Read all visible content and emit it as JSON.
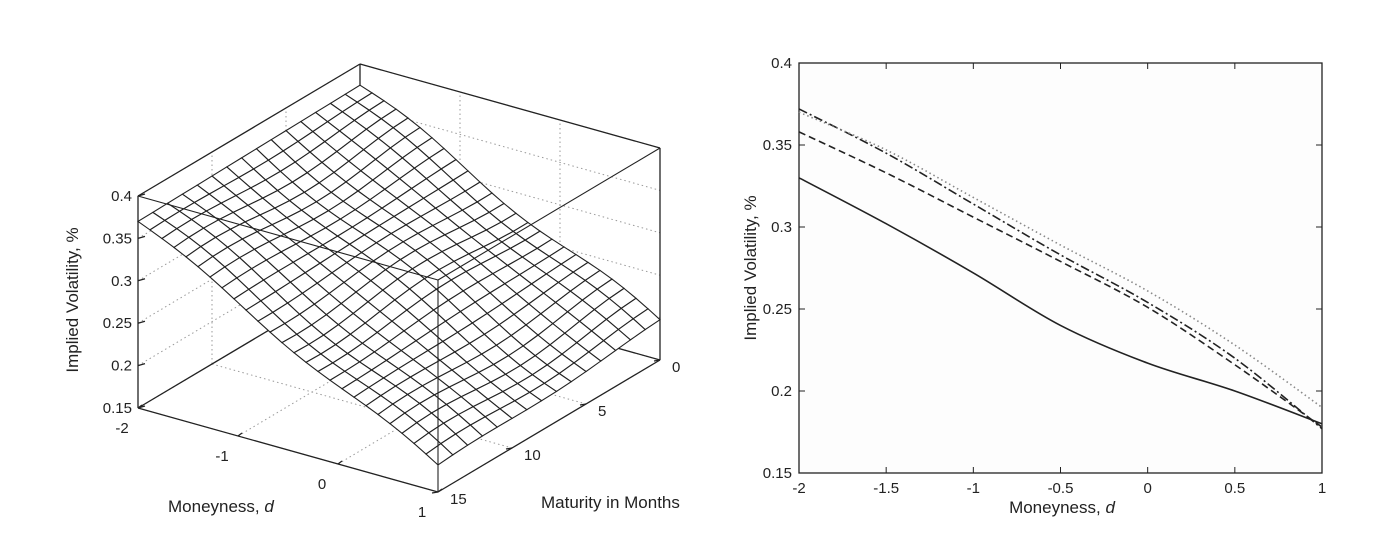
{
  "chart_data": [
    {
      "type": "surface",
      "xlabel": "Moneyness, ",
      "xlabel_var": "d",
      "ylabel": "Maturity in Months",
      "zlabel": "Implied Volatility, %",
      "xlim": [
        -2,
        1
      ],
      "ylim": [
        0,
        15
      ],
      "zlim": [
        0.15,
        0.4
      ],
      "xticks": [
        "-2",
        "-1",
        "0",
        "1"
      ],
      "yticks": [
        "0",
        "5",
        "10",
        "15"
      ],
      "zticks": [
        "0.15",
        "0.2",
        "0.25",
        "0.3",
        "0.35",
        "0.4"
      ],
      "grid": true,
      "surface": {
        "x_range": [
          -2,
          1
        ],
        "y_range": [
          0,
          15
        ],
        "z_at_corners": {
          "x=-2,y=0": 0.375,
          "x=-2,y=15": 0.37,
          "x=1,y=0": 0.195,
          "x=1,y=15": 0.18
        },
        "grid_lines_x": 26,
        "grid_lines_y": 16
      }
    },
    {
      "type": "line",
      "xlabel": "Moneyness, ",
      "xlabel_var": "d",
      "ylabel": "Implied Volatility, %",
      "xlim": [
        -2,
        1
      ],
      "ylim": [
        0.15,
        0.4
      ],
      "xticks": [
        "-2",
        "-1.5",
        "-1",
        "-0.5",
        "0",
        "0.5",
        "1"
      ],
      "yticks": [
        "0.15",
        "0.2",
        "0.25",
        "0.3",
        "0.35",
        "0.4"
      ],
      "grid": false,
      "series": [
        {
          "style": "solid",
          "x": [
            -2,
            -1.5,
            -1,
            -0.5,
            0,
            0.5,
            1
          ],
          "y": [
            0.33,
            0.302,
            0.272,
            0.24,
            0.217,
            0.2,
            0.18
          ]
        },
        {
          "style": "dashed",
          "x": [
            -2,
            -1.5,
            -1,
            -0.5,
            0,
            0.5,
            1
          ],
          "y": [
            0.358,
            0.333,
            0.306,
            0.279,
            0.251,
            0.216,
            0.178
          ]
        },
        {
          "style": "dashdot",
          "x": [
            -2,
            -1.5,
            -1,
            -0.5,
            0,
            0.5,
            1
          ],
          "y": [
            0.372,
            0.345,
            0.314,
            0.283,
            0.254,
            0.22,
            0.177
          ]
        },
        {
          "style": "dotted",
          "x": [
            -2,
            -1.5,
            -1,
            -0.5,
            0,
            0.5,
            1
          ],
          "y": [
            0.37,
            0.347,
            0.318,
            0.289,
            0.261,
            0.228,
            0.19
          ]
        }
      ]
    }
  ]
}
